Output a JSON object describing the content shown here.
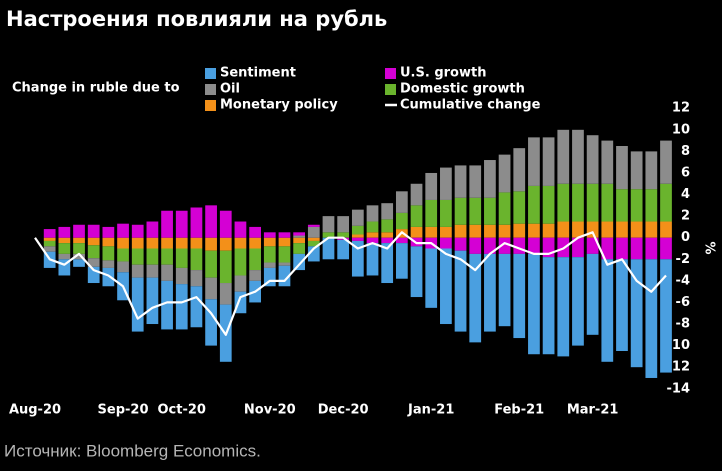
{
  "chart_data": {
    "type": "bar",
    "stacked": true,
    "title": "Настроения повлияли на рубль",
    "legend_title": "Change in ruble due to",
    "source": "Источник: Bloomberg Economics.",
    "y_unit": "%",
    "y_axis_side": "right",
    "categories": [
      "Aug-20",
      null,
      null,
      null,
      null,
      null,
      "Sep-20",
      null,
      null,
      null,
      "Oct-20",
      null,
      null,
      null,
      null,
      null,
      "Nov-20",
      null,
      null,
      null,
      null,
      "Dec-20",
      null,
      null,
      null,
      null,
      null,
      "Jan-21",
      null,
      null,
      null,
      null,
      null,
      "Feb-21",
      null,
      null,
      null,
      null,
      "Mar-21",
      null,
      null,
      null,
      null,
      null
    ],
    "ylim": [
      -14.3,
      12.3
    ],
    "yticks": [
      -14,
      -12,
      -10,
      -8,
      -6,
      -4,
      -2,
      0,
      2,
      4,
      6,
      8,
      10,
      12
    ],
    "series": [
      {
        "name": "Sentiment",
        "color": "#4a9fe0",
        "values": [
          0,
          -1.5,
          -1.5,
          -0.7,
          -1.5,
          -1.7,
          -2.6,
          -5,
          -4.3,
          -4.5,
          -4.2,
          -3.8,
          -4.3,
          -5.3,
          -2,
          -2,
          -1.7,
          -1.9,
          -1.5,
          -1.4,
          -2,
          -1.8,
          -3.3,
          -3,
          -3.7,
          -3.3,
          -4.7,
          -5.5,
          -7,
          -7.5,
          -8.2,
          -7.2,
          -6.7,
          -7.8,
          -9.3,
          -9,
          -9.2,
          -8.2,
          -7.5,
          -9.5,
          -8.5,
          -10,
          -11,
          -10.5
        ]
      },
      {
        "name": "U.S. growth",
        "color": "#d400d4",
        "values": [
          0,
          0.8,
          1,
          1.2,
          1.2,
          1,
          1.3,
          1.2,
          1.5,
          2.5,
          2.5,
          2.8,
          3,
          2.5,
          1.5,
          1,
          0.5,
          0.5,
          0.3,
          0.2,
          0,
          -0.2,
          -0.3,
          -0.5,
          -0.5,
          -0.5,
          -0.8,
          -1,
          -1,
          -1.2,
          -1.5,
          -1.5,
          -1.5,
          -1.5,
          -1.5,
          -1.8,
          -1.8,
          -1.8,
          -1.5,
          -2,
          -2,
          -2,
          -2,
          -2
        ]
      },
      {
        "name": "Oil",
        "color": "#8c8c8c",
        "values": [
          0,
          -0.5,
          -0.5,
          -0.5,
          -0.8,
          -0.7,
          -1,
          -1.2,
          -1.2,
          -1.5,
          -1.5,
          -1.5,
          -2,
          -2,
          -1.5,
          -1,
          -0.5,
          -0.3,
          0.2,
          1,
          1.5,
          1.5,
          1.5,
          1.5,
          1.5,
          2,
          2,
          2.5,
          3,
          3,
          3,
          3.5,
          3.5,
          4,
          4.5,
          4.5,
          5,
          5,
          4.5,
          4,
          4,
          3.5,
          3.5,
          4
        ]
      },
      {
        "name": "Domestic growth",
        "color": "#6ab42d",
        "values": [
          0,
          -0.5,
          -1,
          -1,
          -1.2,
          -1.3,
          -1.2,
          -1.5,
          -1.5,
          -1.5,
          -1.8,
          -2,
          -2.5,
          -3,
          -2.5,
          -2,
          -1.5,
          -1.5,
          -1,
          -0.5,
          0.5,
          0.5,
          0.8,
          1,
          1.2,
          1.5,
          2,
          2.5,
          2.5,
          2.5,
          2.5,
          2.5,
          3,
          3,
          3.5,
          3.5,
          3.5,
          3.5,
          3.5,
          3.5,
          3,
          3,
          3,
          3.5
        ]
      },
      {
        "name": "Monetary policy",
        "color": "#f39019",
        "values": [
          0,
          -0.3,
          -0.5,
          -0.5,
          -0.7,
          -0.8,
          -1,
          -1,
          -1,
          -1,
          -1,
          -1,
          -1.2,
          -1.2,
          -1,
          -1,
          -0.8,
          -0.8,
          -0.5,
          -0.3,
          0,
          0,
          0.3,
          0.5,
          0.5,
          0.8,
          1,
          1,
          1,
          1.2,
          1.2,
          1.2,
          1.2,
          1.3,
          1.3,
          1.3,
          1.5,
          1.5,
          1.5,
          1.5,
          1.5,
          1.5,
          1.5,
          1.5
        ]
      },
      {
        "name": "Cumulative change",
        "color": "#ffffff",
        "type": "line",
        "values": [
          0,
          -2,
          -2.5,
          -1.5,
          -3,
          -3.5,
          -4.5,
          -7.5,
          -6.5,
          -6,
          -6,
          -5.5,
          -7,
          -9,
          -5.5,
          -5,
          -4,
          -4,
          -2.5,
          -1,
          0,
          0,
          -1,
          -0.5,
          -1,
          0.5,
          -0.5,
          -0.5,
          -1.5,
          -2,
          -3,
          -1.5,
          -0.5,
          -1,
          -1.5,
          -1.5,
          -1,
          0,
          0.5,
          -2.5,
          -2,
          -4,
          -5,
          -3.5
        ]
      }
    ]
  }
}
